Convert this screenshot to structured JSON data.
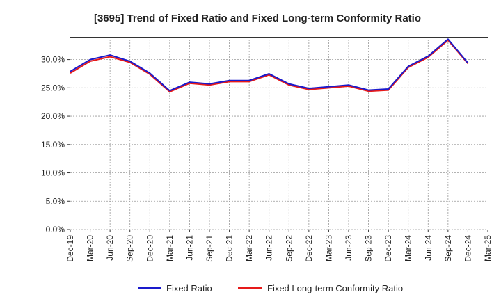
{
  "chart_data": {
    "type": "line",
    "title": "[3695]  Trend of Fixed Ratio and Fixed Long-term Conformity Ratio",
    "xlabel": "",
    "ylabel": "",
    "ylim": [
      0,
      34
    ],
    "y_ticks": [
      "0.0%",
      "5.0%",
      "10.0%",
      "15.0%",
      "20.0%",
      "25.0%",
      "30.0%"
    ],
    "y_tick_values": [
      0,
      5,
      10,
      15,
      20,
      25,
      30
    ],
    "categories": [
      "Dec-19",
      "Mar-20",
      "Jun-20",
      "Sep-20",
      "Dec-20",
      "Mar-21",
      "Jun-21",
      "Sep-21",
      "Dec-21",
      "Mar-22",
      "Jun-22",
      "Sep-22",
      "Dec-22",
      "Mar-23",
      "Jun-23",
      "Sep-23",
      "Dec-23",
      "Mar-24",
      "Jun-24",
      "Sep-24",
      "Dec-24",
      "Mar-25"
    ],
    "grid": true,
    "legend_position": "bottom",
    "series": [
      {
        "name": "Fixed Ratio",
        "color": "#1a1acc",
        "values": [
          27.9,
          30.0,
          30.8,
          29.7,
          27.6,
          24.5,
          26.0,
          25.7,
          26.3,
          26.3,
          27.5,
          25.7,
          24.9,
          25.2,
          25.5,
          24.6,
          24.8,
          28.8,
          30.6,
          33.6,
          29.4,
          null
        ]
      },
      {
        "name": "Fixed Long-term Conformity Ratio",
        "color": "#e61a1a",
        "values": [
          27.6,
          29.7,
          30.5,
          29.5,
          27.4,
          24.3,
          25.8,
          25.5,
          26.1,
          26.1,
          27.3,
          25.5,
          24.7,
          25.0,
          25.3,
          24.4,
          24.6,
          28.6,
          30.4,
          33.4,
          29.3,
          null
        ]
      }
    ]
  }
}
